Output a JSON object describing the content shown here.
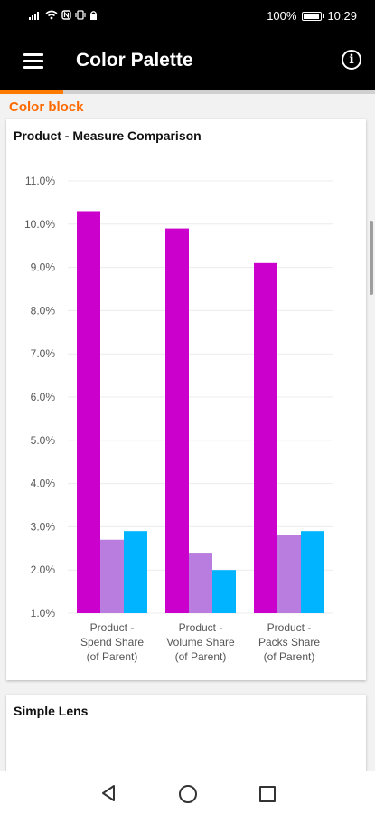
{
  "status_bar": {
    "battery_percent": "100%",
    "battery_level": 1.0,
    "time": "10:29"
  },
  "app_bar": {
    "title": "Color Palette",
    "menu_icon": "hamburger-menu-icon",
    "info_icon": "info-circle-icon"
  },
  "section": {
    "label": "Color block",
    "accent_color": "#ff6a00"
  },
  "chart_card": {
    "title": "Product - Measure Comparison"
  },
  "chart_data": {
    "type": "bar",
    "title": "Product - Measure Comparison",
    "categories": [
      [
        "Product -",
        "Spend Share",
        "(of Parent)"
      ],
      [
        "Product -",
        "Volume Share",
        "(of Parent)"
      ],
      [
        "Product -",
        "Packs Share",
        "(of Parent)"
      ]
    ],
    "series": [
      {
        "color": "#cc00cc",
        "values": [
          10.3,
          9.9,
          9.1
        ]
      },
      {
        "color": "#b97de0",
        "values": [
          2.7,
          2.4,
          2.8
        ]
      },
      {
        "color": "#00b4ff",
        "values": [
          2.9,
          2.0,
          2.9
        ]
      }
    ],
    "ylim": [
      1.0,
      11.0
    ],
    "yticks": [
      "1.0%",
      "2.0%",
      "3.0%",
      "4.0%",
      "5.0%",
      "6.0%",
      "7.0%",
      "8.0%",
      "9.0%",
      "10.0%",
      "11.0%"
    ],
    "grid": true
  },
  "lens_card": {
    "title": "Simple Lens"
  },
  "nav_bar": {
    "back_icon": "back-triangle-icon",
    "home_icon": "home-circle-icon",
    "recent_icon": "recent-apps-square-icon"
  }
}
